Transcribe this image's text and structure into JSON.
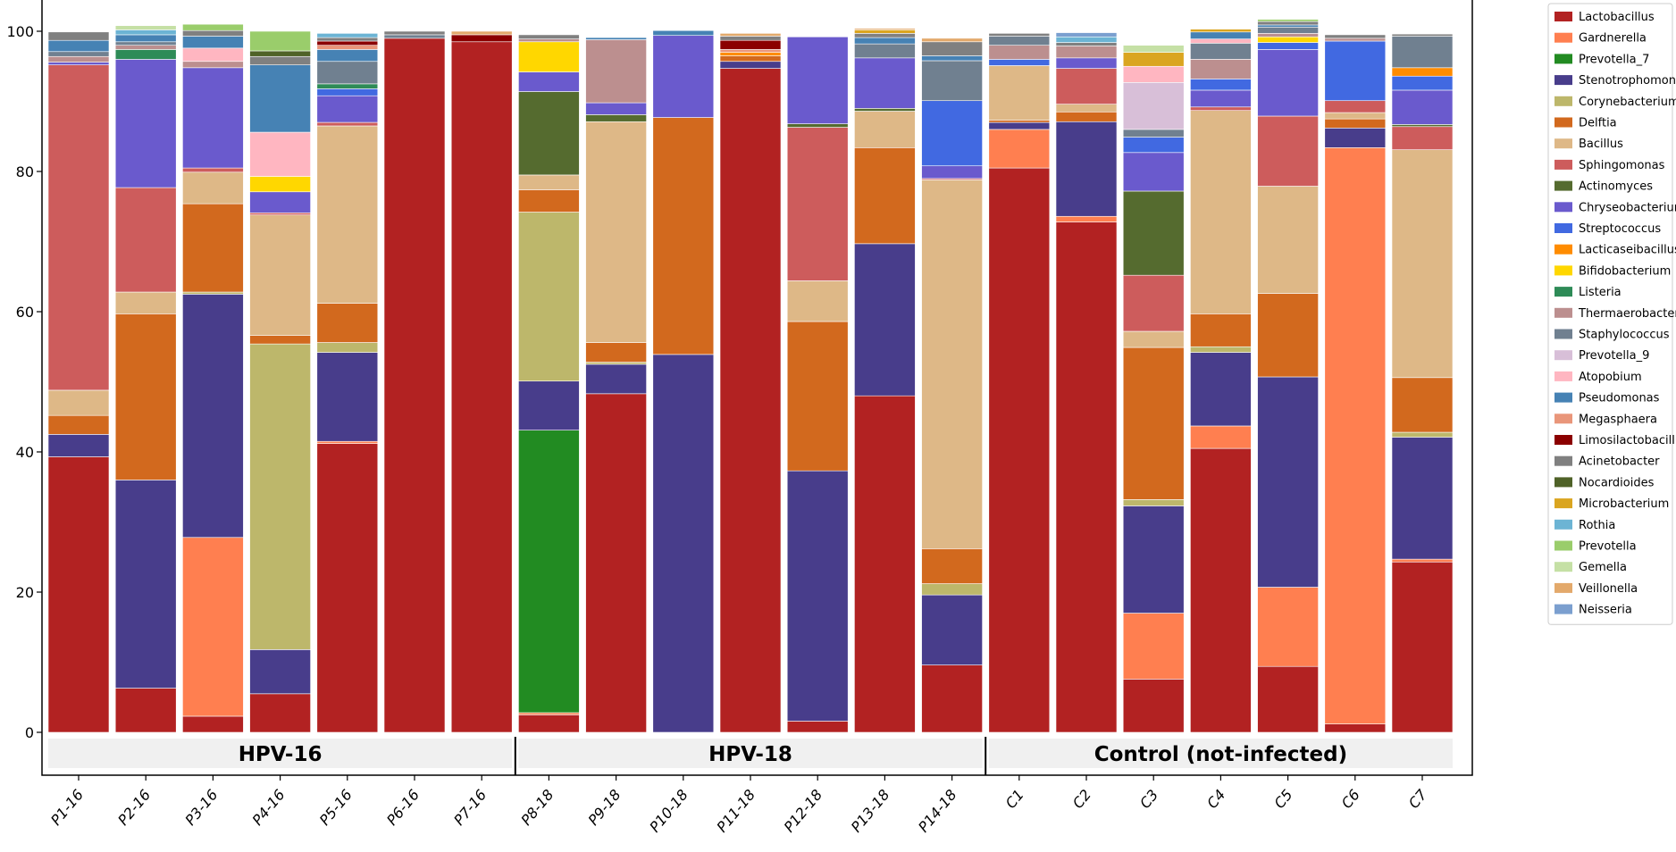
{
  "chart_data": {
    "type": "bar",
    "stacked": true,
    "title": "",
    "xlabel": "",
    "ylabel": "",
    "ylim": [
      0,
      100
    ],
    "yticks": [
      0,
      20,
      40,
      60,
      80,
      100
    ],
    "legend_position": "right",
    "categories": [
      "P1-16",
      "P2-16",
      "P3-16",
      "P4-16",
      "P5-16",
      "P6-16",
      "P7-16",
      "P8-18",
      "P9-18",
      "P10-18",
      "P11-18",
      "P12-18",
      "P13-18",
      "P14-18",
      "C1",
      "C2",
      "C3",
      "C4",
      "C5",
      "C6",
      "C7"
    ],
    "groups": [
      {
        "name": "HPV-16",
        "members": [
          "P1-16",
          "P2-16",
          "P3-16",
          "P4-16",
          "P5-16",
          "P6-16",
          "P7-16"
        ]
      },
      {
        "name": "HPV-18",
        "members": [
          "P8-18",
          "P9-18",
          "P10-18",
          "P11-18",
          "P12-18",
          "P13-18",
          "P14-18"
        ]
      },
      {
        "name": "Control (not-infected)",
        "members": [
          "C1",
          "C2",
          "C3",
          "C4",
          "C5",
          "C6",
          "C7"
        ]
      }
    ],
    "series": [
      {
        "name": "Lactobacillus",
        "color": "#b22222",
        "values": [
          39.3,
          6.3,
          2.3,
          5.5,
          41.2,
          99.0,
          98.5,
          2.5,
          48.3,
          0,
          94.7,
          1.6,
          48.0,
          9.6,
          80.5,
          72.8,
          7.6,
          40.5,
          9.4,
          1.2,
          24.3
        ]
      },
      {
        "name": "Gardnerella",
        "color": "#ff7f50",
        "values": [
          0,
          0,
          25.5,
          0,
          0.3,
          0,
          0,
          0.3,
          0,
          0,
          0,
          0,
          0,
          0,
          5.5,
          0.8,
          9.4,
          3.2,
          11.3,
          82.2,
          0.4
        ]
      },
      {
        "name": "Prevotella_7",
        "color": "#228b22",
        "values": [
          0,
          0,
          0,
          0,
          0,
          0,
          0,
          40.3,
          0,
          0,
          0,
          0,
          0,
          0,
          0,
          0,
          0,
          0,
          0,
          0,
          0
        ]
      },
      {
        "name": "Stenotrophomonas",
        "color": "#483d8b",
        "values": [
          3.2,
          29.7,
          34.7,
          6.3,
          12.7,
          0,
          0,
          7.0,
          4.2,
          53.9,
          1.0,
          35.7,
          21.7,
          10.0,
          1.0,
          13.5,
          15.3,
          10.5,
          30.0,
          2.8,
          17.4
        ]
      },
      {
        "name": "Corynebacterium",
        "color": "#bdb76b",
        "values": [
          0,
          0,
          0.3,
          43.6,
          1.4,
          0,
          0,
          24.1,
          0.3,
          0,
          0,
          0,
          0,
          1.6,
          0,
          0,
          0.9,
          0.8,
          0,
          0,
          0.7
        ]
      },
      {
        "name": "Delftia",
        "color": "#d2691e",
        "values": [
          2.7,
          23.7,
          12.6,
          1.2,
          5.6,
          0,
          0,
          3.2,
          2.8,
          33.8,
          0.8,
          21.3,
          13.7,
          5.0,
          0.3,
          1.4,
          21.7,
          4.7,
          11.9,
          1.3,
          7.8
        ]
      },
      {
        "name": "Bacillus",
        "color": "#deb887",
        "values": [
          3.6,
          3.1,
          4.5,
          17.2,
          25.3,
          0,
          0,
          2.1,
          31.5,
          0,
          0,
          5.8,
          5.2,
          52.6,
          7.8,
          1.1,
          2.3,
          29.0,
          15.3,
          0.9,
          32.5
        ]
      },
      {
        "name": "Sphingomonas",
        "color": "#cd5c5c",
        "values": [
          46.4,
          14.9,
          0.6,
          0.3,
          0.5,
          0,
          0,
          0,
          0,
          0,
          0,
          21.9,
          0,
          0.2,
          0,
          5.1,
          8.0,
          0.5,
          10.0,
          1.7,
          3.3
        ]
      },
      {
        "name": "Actinomyces",
        "color": "#556b2f",
        "values": [
          0,
          0,
          0,
          0,
          0,
          0,
          0,
          11.9,
          1.0,
          0,
          0,
          0.5,
          0.4,
          0,
          0,
          0,
          12.0,
          0,
          0,
          0,
          0.3
        ]
      },
      {
        "name": "Chryseobacterium",
        "color": "#6a5acd",
        "values": [
          0.4,
          18.3,
          14.3,
          3.0,
          3.8,
          0,
          0,
          2.8,
          1.7,
          11.7,
          0,
          12.4,
          7.2,
          1.8,
          0,
          1.5,
          5.5,
          2.4,
          9.5,
          0,
          4.9
        ]
      },
      {
        "name": "Streptococcus",
        "color": "#4169e1",
        "values": [
          0,
          0,
          0,
          0,
          1.0,
          0,
          0,
          0,
          0,
          0,
          0,
          0,
          0,
          9.3,
          0.9,
          0,
          2.2,
          1.6,
          1.0,
          8.5,
          2.0
        ]
      },
      {
        "name": "Lacticaseibacillus",
        "color": "#ff8c00",
        "values": [
          0,
          0,
          0,
          0,
          0,
          0,
          0,
          0,
          0,
          0,
          0.5,
          0,
          0,
          0,
          0,
          0,
          0,
          0,
          0,
          0,
          1.2
        ]
      },
      {
        "name": "Bifidobacterium",
        "color": "#ffd700",
        "values": [
          0,
          0,
          0,
          2.2,
          0,
          0,
          0,
          4.3,
          0,
          0,
          0,
          0,
          0,
          0,
          0,
          0,
          0,
          0,
          0.8,
          0,
          0
        ]
      },
      {
        "name": "Listeria",
        "color": "#2e8b57",
        "values": [
          0,
          1.4,
          0,
          0,
          0.7,
          0,
          0,
          0,
          0,
          0,
          0,
          0,
          0,
          0,
          0,
          0,
          0,
          0,
          0,
          0,
          0
        ]
      },
      {
        "name": "Thermaerobacter",
        "color": "#bc8f8f",
        "values": [
          0.8,
          0.6,
          0.9,
          0,
          0,
          0,
          0,
          0.4,
          9.0,
          0,
          0,
          0,
          0,
          0,
          2.0,
          1.7,
          0,
          2.8,
          0.5,
          0.4,
          0
        ]
      },
      {
        "name": "Staphylococcus",
        "color": "#708090",
        "values": [
          0.7,
          0.5,
          0,
          0,
          3.2,
          0.5,
          0,
          0,
          0,
          0,
          0,
          0,
          2.0,
          5.7,
          1.3,
          0,
          1.1,
          2.3,
          0.9,
          0,
          4.5
        ]
      },
      {
        "name": "Prevotella_9",
        "color": "#d8bfd8",
        "values": [
          0,
          0,
          0,
          0,
          0,
          0,
          0,
          0,
          0,
          0,
          0,
          0,
          0,
          0,
          0,
          0,
          6.7,
          0,
          0,
          0,
          0
        ]
      },
      {
        "name": "Atopobium",
        "color": "#ffb6c1",
        "values": [
          0,
          0,
          1.9,
          6.3,
          0,
          0,
          0,
          0,
          0,
          0,
          0,
          0,
          0,
          0,
          0,
          0,
          2.3,
          0.6,
          0,
          0,
          0
        ]
      },
      {
        "name": "Pseudomonas",
        "color": "#4682b4",
        "values": [
          1.6,
          1.0,
          1.7,
          9.6,
          1.7,
          0,
          0,
          0,
          0.3,
          0.7,
          0,
          0,
          0.9,
          0.7,
          0,
          0,
          0,
          1.0,
          0.3,
          0,
          0
        ]
      },
      {
        "name": "Megasphaera",
        "color": "#e9967a",
        "values": [
          0,
          0,
          0,
          0,
          0.6,
          0,
          0,
          0,
          0,
          0,
          0.4,
          0,
          0,
          0,
          0,
          0,
          0,
          0,
          0,
          0,
          0
        ]
      },
      {
        "name": "Limosilactobacillus",
        "color": "#8b0000",
        "values": [
          0,
          0,
          0,
          0,
          0.6,
          0,
          1.0,
          0,
          0,
          0,
          1.3,
          0,
          0,
          0,
          0,
          0,
          0,
          0,
          0,
          0,
          0
        ]
      },
      {
        "name": "Acinetobacter",
        "color": "#808080",
        "values": [
          1.2,
          0,
          0.8,
          1.2,
          0.5,
          0.5,
          0,
          0.6,
          0,
          0,
          0.6,
          0,
          0.6,
          2.0,
          0.4,
          0.5,
          0,
          0,
          0.5,
          0.5,
          0.3
        ]
      },
      {
        "name": "Nocardioides",
        "color": "#4f6228",
        "values": [
          0,
          0,
          0,
          0.8,
          0,
          0,
          0,
          0,
          0,
          0,
          0,
          0,
          0,
          0,
          0,
          0,
          0,
          0,
          0,
          0,
          0
        ]
      },
      {
        "name": "Microbacterium",
        "color": "#daa520",
        "values": [
          0,
          0,
          0,
          0,
          0,
          0,
          0,
          0,
          0,
          0,
          0,
          0,
          0.5,
          0,
          0,
          0,
          2.0,
          0.4,
          0,
          0,
          0
        ]
      },
      {
        "name": "Rothia",
        "color": "#6cb4d4",
        "values": [
          0,
          0.7,
          0,
          0,
          0.6,
          0,
          0,
          0,
          0,
          0,
          0,
          0,
          0,
          0,
          0,
          0.8,
          0,
          0,
          0,
          0,
          0
        ]
      },
      {
        "name": "Prevotella",
        "color": "#9acd6b",
        "values": [
          0,
          0,
          0.9,
          2.8,
          0,
          0,
          0,
          0,
          0,
          0,
          0,
          0,
          0,
          0,
          0,
          0,
          0,
          0,
          0.3,
          0,
          0
        ]
      },
      {
        "name": "Gemella",
        "color": "#c5e0a5",
        "values": [
          0,
          0.6,
          0,
          0,
          0,
          0,
          0,
          0,
          0,
          0,
          0,
          0,
          0,
          0,
          0,
          0,
          1.0,
          0,
          0,
          0,
          0
        ]
      },
      {
        "name": "Veillonella",
        "color": "#e3a96b",
        "values": [
          0,
          0,
          0,
          0,
          0,
          0,
          0.5,
          0,
          0,
          0,
          0.4,
          0,
          0.2,
          0.5,
          0,
          0,
          0,
          0,
          0,
          0,
          0
        ]
      },
      {
        "name": "Neisseria",
        "color": "#7b9fcf",
        "values": [
          0,
          0,
          0,
          0,
          0,
          0,
          0,
          0,
          0,
          0,
          0,
          0,
          0,
          0,
          0,
          0.6,
          0,
          0,
          0,
          0,
          0
        ]
      }
    ]
  }
}
